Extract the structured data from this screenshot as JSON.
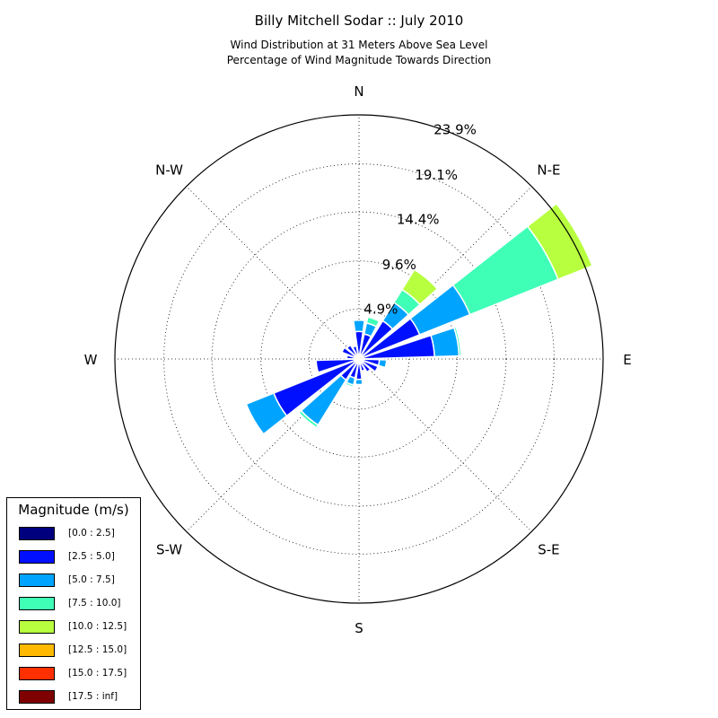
{
  "chart_data": {
    "type": "windrose",
    "title": "Billy Mitchell Sodar :: July 2010",
    "subtitle_lines": [
      "Wind Distribution at 31 Meters Above Sea Level",
      "Percentage of Wind Magnitude Towards Direction"
    ],
    "direction_labels": [
      {
        "label": "N",
        "angle": 0
      },
      {
        "label": "N-E",
        "angle": 45
      },
      {
        "label": "E",
        "angle": 90
      },
      {
        "label": "S-E",
        "angle": 135
      },
      {
        "label": "S",
        "angle": 180
      },
      {
        "label": "S-W",
        "angle": 225
      },
      {
        "label": "W",
        "angle": 270
      },
      {
        "label": "N-W",
        "angle": 315
      }
    ],
    "radial_max": 23.9,
    "radial_ticks": [
      4.9,
      9.6,
      14.4,
      19.1,
      23.9
    ],
    "radial_tick_labels": [
      "4.9%",
      "9.6%",
      "14.4%",
      "19.1%",
      "23.9%"
    ],
    "grid": true,
    "legend": {
      "title": "Magnitude (m/s)",
      "placement": "lower-left",
      "bins": [
        {
          "label": "[0.0 : 2.5]",
          "color": "#00007f"
        },
        {
          "label": "[2.5 : 5.0]",
          "color": "#0010ff"
        },
        {
          "label": "[5.0 : 7.5]",
          "color": "#00a4ff"
        },
        {
          "label": "[7.5 : 10.0]",
          "color": "#3fffb7"
        },
        {
          "label": "[10.0 : 12.5]",
          "color": "#b7ff3f"
        },
        {
          "label": "[12.5 : 15.0]",
          "color": "#ffb900"
        },
        {
          "label": "[15.0 : 17.5]",
          "color": "#ff3000"
        },
        {
          "label": "[17.5 : inf]",
          "color": "#7f0000"
        }
      ]
    },
    "sector_width_deg": 20,
    "sectors": [
      {
        "direction": 0,
        "cumulative": [
          0.3,
          2.7,
          3.8
        ]
      },
      {
        "direction": 20,
        "cumulative": [
          0.3,
          2.5,
          3.6,
          4.2
        ]
      },
      {
        "direction": 40,
        "cumulative": [
          0.3,
          4.4,
          6.5,
          8.0,
          10.3
        ]
      },
      {
        "direction": 60,
        "cumulative": [
          0.3,
          6.4,
          11.7,
          21.0,
          24.6
        ]
      },
      {
        "direction": 80,
        "cumulative": [
          0.3,
          7.4,
          9.8,
          10.0
        ]
      },
      {
        "direction": 100,
        "cumulative": [
          0.3,
          2.0,
          2.7
        ]
      },
      {
        "direction": 120,
        "cumulative": [
          0.3,
          2.0
        ]
      },
      {
        "direction": 140,
        "cumulative": [
          0.3,
          1.5
        ]
      },
      {
        "direction": 160,
        "cumulative": [
          0.3,
          1.2
        ]
      },
      {
        "direction": 180,
        "cumulative": [
          0.3,
          2.0,
          2.5
        ]
      },
      {
        "direction": 200,
        "cumulative": [
          0.3,
          1.9,
          2.6,
          2.8
        ]
      },
      {
        "direction": 220,
        "cumulative": [
          0.3,
          2.4,
          7.6,
          7.9
        ]
      },
      {
        "direction": 240,
        "cumulative": [
          0.3,
          9.0,
          11.9,
          12.0
        ]
      },
      {
        "direction": 260,
        "cumulative": [
          0.3,
          4.2
        ]
      },
      {
        "direction": 280,
        "cumulative": [
          0.3,
          1.2
        ]
      },
      {
        "direction": 300,
        "cumulative": [
          0.3,
          1.8
        ]
      },
      {
        "direction": 320,
        "cumulative": [
          0.3,
          1.6
        ]
      },
      {
        "direction": 340,
        "cumulative": [
          0.3,
          1.3
        ]
      }
    ]
  }
}
